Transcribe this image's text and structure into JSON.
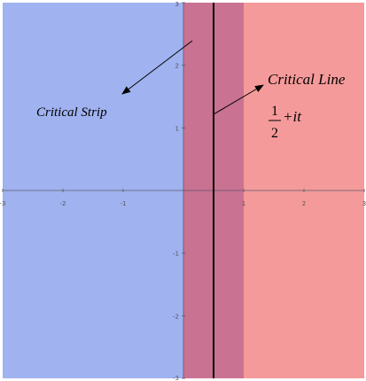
{
  "chart_data": {
    "type": "area",
    "title": "",
    "xlabel": "",
    "ylabel": "",
    "xlim": [
      -3,
      3
    ],
    "ylim": [
      -3,
      3
    ],
    "grid": false,
    "regions": [
      {
        "name": "left-half-plane",
        "x_from": -3,
        "x_to": 0,
        "color": "#a0b2f0"
      },
      {
        "name": "critical-strip",
        "x_from": 0,
        "x_to": 1,
        "color": "#c97291"
      },
      {
        "name": "right-half-plane",
        "x_from": 1,
        "x_to": 3,
        "color": "#f59a9a"
      }
    ],
    "critical_line_x": 0.5,
    "x_ticks": [
      "-3",
      "-2",
      "-1",
      "1",
      "2",
      "3"
    ],
    "y_ticks": [
      "3",
      "2",
      "1",
      "-1",
      "-2",
      "-3"
    ]
  },
  "annotations": {
    "critical_strip": "Critical Strip",
    "critical_line": "Critical Line",
    "formula_numerator": "1",
    "formula_denominator": "2",
    "formula_suffix": "+it"
  },
  "colors": {
    "axis": "#5a5a6a",
    "line": "#000000",
    "arrow": "#000000"
  }
}
